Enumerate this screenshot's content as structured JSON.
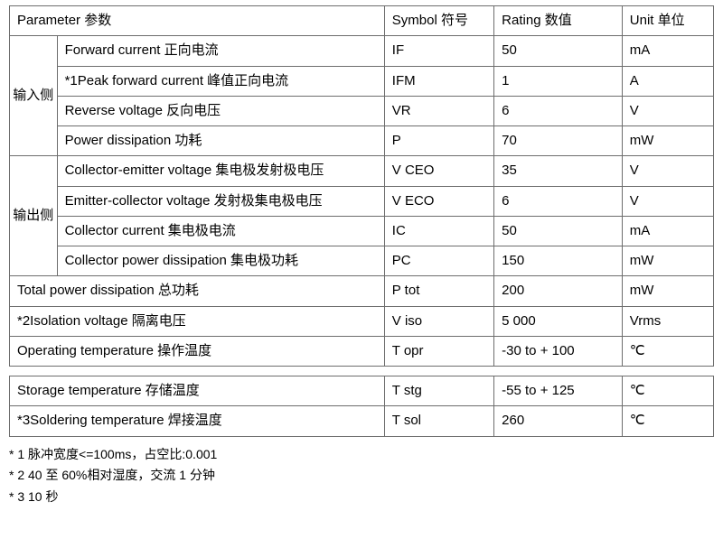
{
  "header": {
    "parameter": "Parameter 参数",
    "symbol": "Symbol 符号",
    "rating": "Rating 数值",
    "unit": "Unit 单位"
  },
  "groups": {
    "input": "输入侧",
    "output": "输出侧"
  },
  "rows": {
    "in1": {
      "param": "Forward current 正向电流",
      "symbol": "IF",
      "rating": "50",
      "unit": "mA"
    },
    "in2": {
      "param": "*1Peak forward current 峰值正向电流",
      "symbol": "IFM",
      "rating": "1",
      "unit": "A"
    },
    "in3": {
      "param": "Reverse voltage 反向电压",
      "symbol": "VR",
      "rating": "6",
      "unit": "V"
    },
    "in4": {
      "param": "Power dissipation 功耗",
      "symbol": "P",
      "rating": "70",
      "unit": "mW"
    },
    "out1": {
      "param": "Collector-emitter voltage 集电极发射极电压",
      "symbol": "V CEO",
      "rating": "35",
      "unit": "V"
    },
    "out2": {
      "param": "Emitter-collector voltage 发射极集电极电压",
      "symbol": "V ECO",
      "rating": "6",
      "unit": "V"
    },
    "out3": {
      "param": "Collector current 集电极电流",
      "symbol": "IC",
      "rating": "50",
      "unit": "mA"
    },
    "out4": {
      "param": "Collector power dissipation 集电极功耗",
      "symbol": "PC",
      "rating": "150",
      "unit": "mW"
    },
    "tot": {
      "param": "Total power dissipation 总功耗",
      "symbol": "P tot",
      "rating": "200",
      "unit": "mW"
    },
    "iso": {
      "param": "*2Isolation voltage 隔离电压",
      "symbol": "V iso",
      "rating": "5 000",
      "unit": "Vrms"
    },
    "topr": {
      "param": "Operating temperature 操作温度",
      "symbol": "T opr",
      "rating": "-30 to + 100",
      "unit": "℃"
    },
    "tstg": {
      "param": "Storage temperature 存储温度",
      "symbol": "T stg",
      "rating": "-55 to + 125",
      "unit": "℃"
    },
    "tsol": {
      "param": "*3Soldering temperature 焊接温度",
      "symbol": "T sol",
      "rating": "260",
      "unit": "℃"
    }
  },
  "notes": {
    "n1": "* 1 脉冲宽度<=100ms，占空比:0.001",
    "n2": "* 2 40 至 60%相对湿度，交流 1 分钟",
    "n3": "* 3 10 秒"
  }
}
